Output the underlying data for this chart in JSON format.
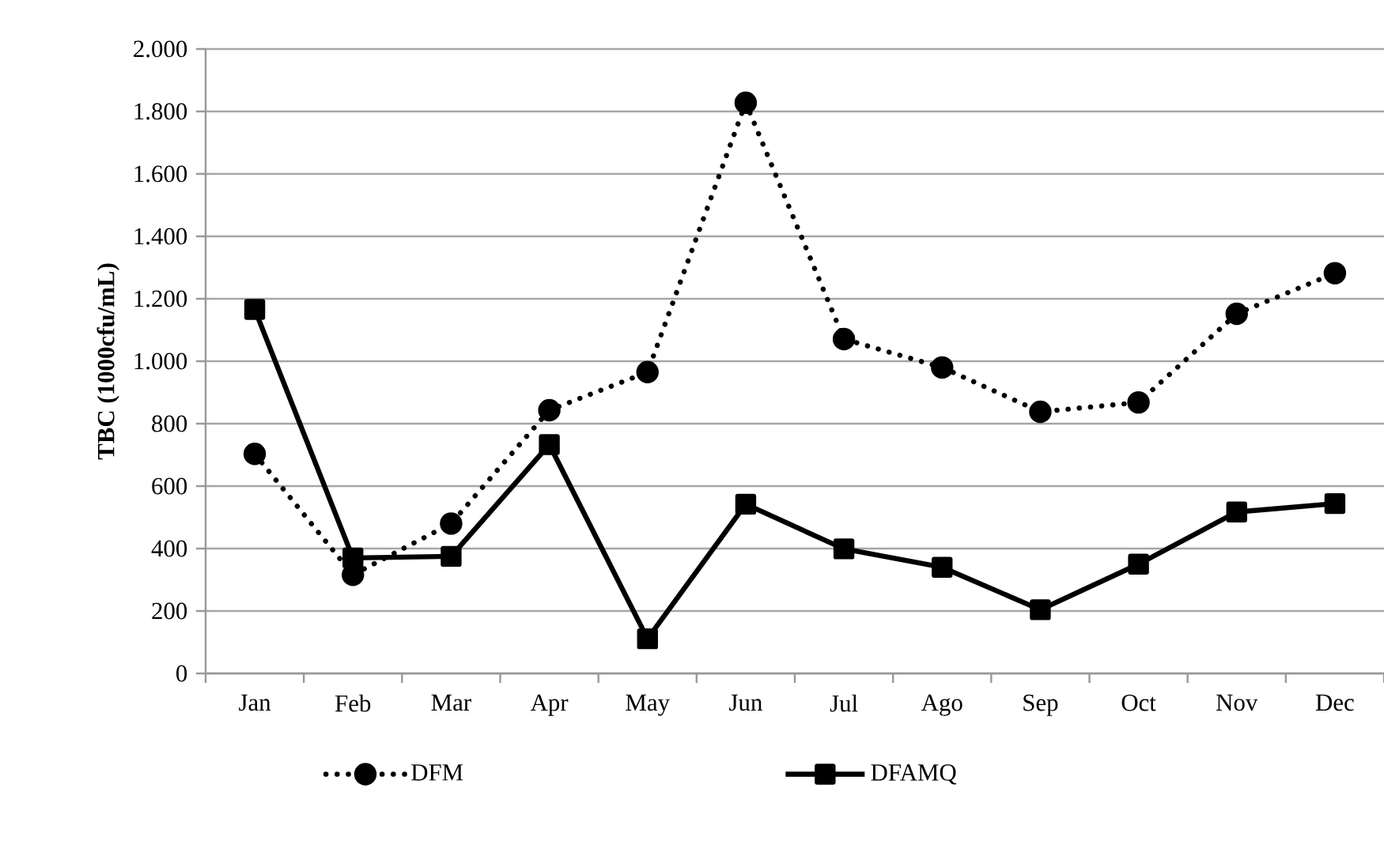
{
  "chart_data": {
    "type": "line",
    "ylabel": "TBC (1000cfu/mL)",
    "categories": [
      "Jan",
      "Feb",
      "Mar",
      "Apr",
      "May",
      "Jun",
      "Jul",
      "Ago",
      "Sep",
      "Oct",
      "Nov",
      "Dec"
    ],
    "series": [
      {
        "name": "DFM",
        "color": "#000000",
        "line_style": "dotted",
        "marker": "circle",
        "values": [
          703,
          316,
          480,
          843,
          965,
          1828,
          1071,
          980,
          838,
          868,
          1152,
          1282
        ]
      },
      {
        "name": "DFAMQ",
        "color": "#000000",
        "line_style": "solid",
        "marker": "square",
        "values": [
          1166,
          370,
          375,
          733,
          111,
          542,
          399,
          340,
          204,
          350,
          517,
          544
        ]
      }
    ],
    "ylim": [
      0,
      2000
    ],
    "yticks": [
      0,
      200,
      400,
      600,
      800,
      {
        "value": 1000,
        "label": "1.000"
      },
      {
        "value": 1200,
        "label": "1.200"
      },
      {
        "value": 1400,
        "label": "1.400"
      },
      {
        "value": 1600,
        "label": "1.600"
      },
      {
        "value": 1800,
        "label": "1.800"
      },
      {
        "value": 2000,
        "label": "2.000"
      }
    ],
    "grid": "y",
    "legend": "bottom"
  }
}
